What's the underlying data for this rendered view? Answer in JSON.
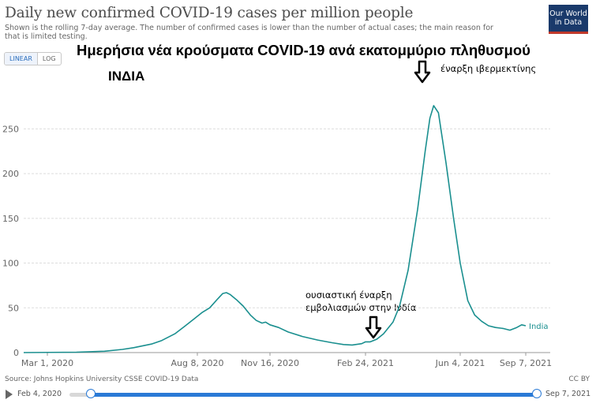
{
  "header": {
    "title": "Daily new confirmed COVID-19 cases per million people",
    "subtitle": "Shown is the rolling 7-day average. The number of confirmed cases is lower than the number of actual cases; the main reason for that is limited testing.",
    "logo_line1": "Our World",
    "logo_line2": "in Data"
  },
  "controls": {
    "linear_label": "LINEAR",
    "log_label": "LOG",
    "active": "linear"
  },
  "overlay": {
    "greek_title": "Ημερήσια νέα κρούσματα COVID-19 ανά εκατομμύριο πληθυσμού",
    "greek_country": "ΙΝΔΙΑ",
    "ivermectin_label": "έναρξη ιβερμεκτίνης",
    "vaccination_label_line1": "ουσιαστική έναρξη",
    "vaccination_label_line2": "εμβολιασμών στην Ινδία"
  },
  "footer": {
    "source": "Source: Johns Hopkins University CSSE COVID-19 Data",
    "license": "CC BY"
  },
  "timeline": {
    "start_label": "Feb 4, 2020",
    "end_label": "Sep 7, 2021"
  },
  "colors": {
    "series": "#1a8f8f",
    "grid": "#dddddd",
    "axis": "#999999"
  },
  "chart_data": {
    "type": "line",
    "title": "Daily new confirmed COVID-19 cases per million people",
    "xlabel": "",
    "ylabel": "",
    "x_ticks": [
      "Mar 1, 2020",
      "Aug 8, 2020",
      "Nov 16, 2020",
      "Feb 24, 2021",
      "Jun 4, 2021",
      "Sep 7, 2021"
    ],
    "y_ticks": [
      0,
      50,
      100,
      150,
      200,
      250
    ],
    "ylim": [
      0,
      290
    ],
    "x_range": [
      "2020-03-01",
      "2021-09-07"
    ],
    "grid": "horizontal",
    "series": [
      {
        "name": "India",
        "x": [
          "2020-03-01",
          "2020-04-01",
          "2020-05-01",
          "2020-05-20",
          "2020-06-01",
          "2020-06-20",
          "2020-07-01",
          "2020-07-15",
          "2020-07-25",
          "2020-08-05",
          "2020-08-15",
          "2020-08-25",
          "2020-09-05",
          "2020-09-12",
          "2020-09-17",
          "2020-09-22",
          "2020-10-01",
          "2020-10-10",
          "2020-10-20",
          "2020-10-28",
          "2020-11-05",
          "2020-11-10",
          "2020-11-16",
          "2020-11-25",
          "2020-12-05",
          "2020-12-20",
          "2021-01-05",
          "2021-01-20",
          "2021-02-01",
          "2021-02-10",
          "2021-02-20",
          "2021-02-24",
          "2021-03-01",
          "2021-03-08",
          "2021-03-15",
          "2021-03-25",
          "2021-04-01",
          "2021-04-10",
          "2021-04-20",
          "2021-04-28",
          "2021-05-03",
          "2021-05-07",
          "2021-05-12",
          "2021-05-20",
          "2021-05-28",
          "2021-06-04",
          "2021-06-15",
          "2021-06-25",
          "2021-07-05",
          "2021-07-15",
          "2021-07-25",
          "2021-08-05",
          "2021-08-15",
          "2021-08-25",
          "2021-09-01",
          "2021-09-07"
        ],
        "values": [
          0,
          0.4,
          1.5,
          3.5,
          5.5,
          9.5,
          13.5,
          21,
          29,
          38,
          45,
          50,
          60,
          66,
          67,
          65,
          59,
          52,
          42,
          36,
          33,
          34,
          31,
          28,
          23,
          18,
          14,
          11,
          9,
          8.5,
          10,
          12,
          12,
          15,
          21,
          34,
          52,
          92,
          160,
          225,
          262,
          276,
          268,
          212,
          150,
          100,
          58,
          42,
          35,
          30,
          28,
          27,
          25,
          28,
          31,
          30
        ]
      }
    ]
  }
}
